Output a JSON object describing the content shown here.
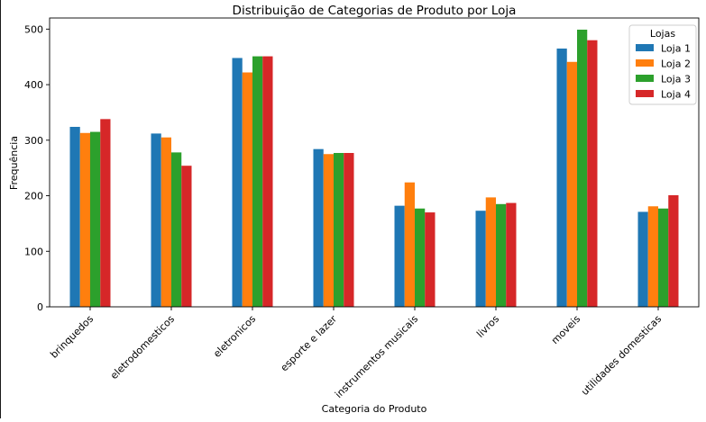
{
  "chart_data": {
    "type": "bar",
    "title": "Distribuição de Categorias de Produto por Loja",
    "xlabel": "Categoria do Produto",
    "ylabel": "Frequência",
    "ylim": [
      0,
      520
    ],
    "yticks": [
      0,
      100,
      200,
      300,
      400,
      500
    ],
    "grid": false,
    "legend": {
      "title": "Lojas",
      "placement": "top-right"
    },
    "categories": [
      "brinquedos",
      "eletrodomesticos",
      "eletronicos",
      "esporte e lazer",
      "instrumentos musicais",
      "livros",
      "moveis",
      "utilidades domesticas"
    ],
    "series": [
      {
        "name": "Loja 1",
        "color": "#1f77b4",
        "values": [
          324,
          312,
          448,
          284,
          182,
          173,
          465,
          171
        ]
      },
      {
        "name": "Loja 2",
        "color": "#ff7f0e",
        "values": [
          313,
          305,
          422,
          275,
          224,
          197,
          441,
          181
        ]
      },
      {
        "name": "Loja 3",
        "color": "#2ca02c",
        "values": [
          315,
          278,
          451,
          277,
          177,
          185,
          499,
          177
        ]
      },
      {
        "name": "Loja 4",
        "color": "#d62728",
        "values": [
          338,
          254,
          451,
          277,
          170,
          187,
          480,
          201
        ]
      }
    ]
  }
}
